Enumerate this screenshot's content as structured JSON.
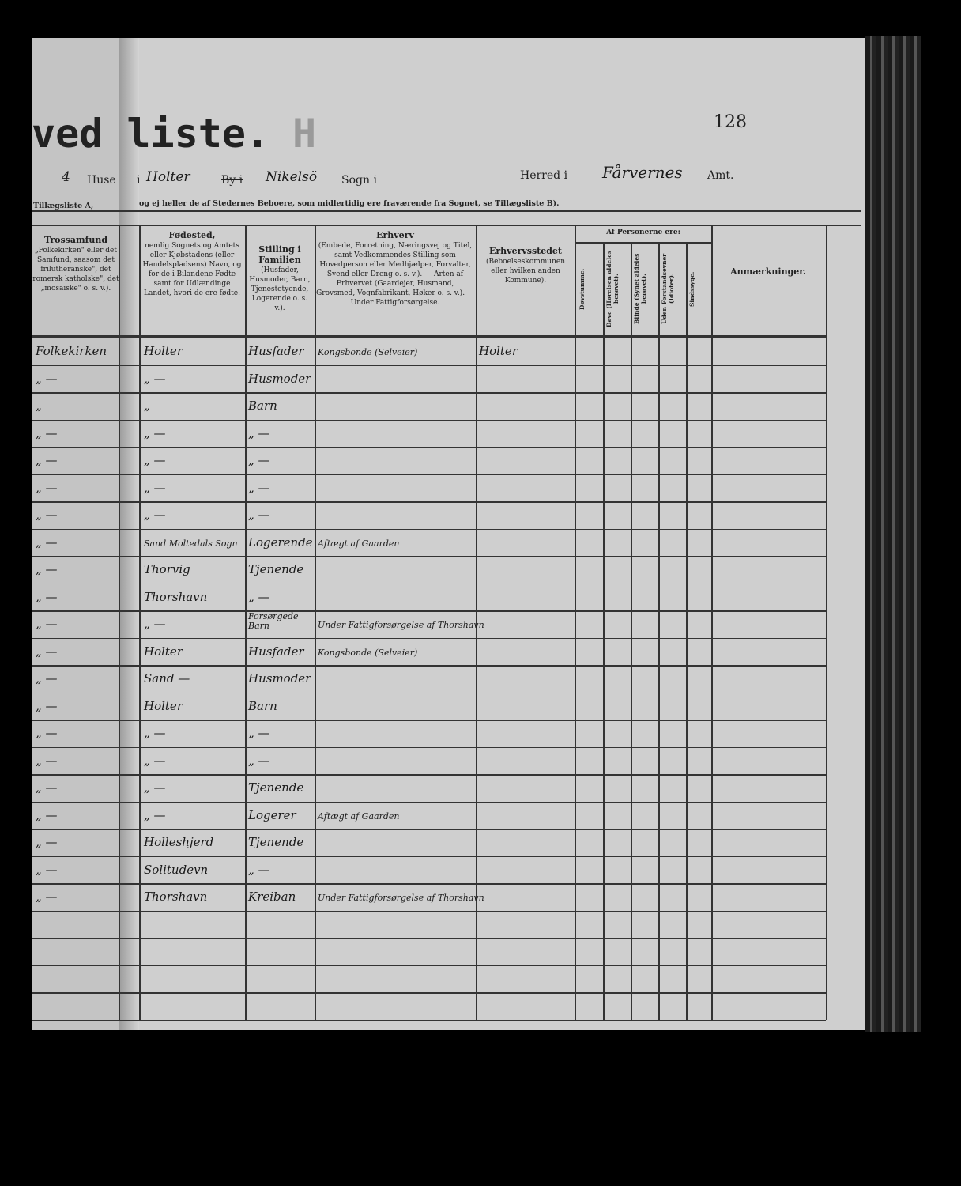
{
  "header": {
    "title": "ved liste.",
    "ghost_letter": "H",
    "page_number": "128",
    "house_count": "4",
    "label_huse": "Huse",
    "label_i": "i",
    "place": "Holter",
    "label_by_struck": "By i",
    "parish": "Nikelsö",
    "label_sogn": "Sogn i",
    "label_herred": "Herred i",
    "county": "Fårvernes",
    "label_amt": "Amt.",
    "left_note": "Tillægsliste A,",
    "note": "og ej heller de af Stedernes Beboere, som midlertidig ere fraværende fra Sognet, se Tillægsliste B)."
  },
  "columns": {
    "tros": {
      "title": "Trossamfund",
      "desc": "„Folkekirken\" eller det Samfund, saasom det frilutheranske\", det romersk katholske\", det „mosaiske\" o. s. v.)."
    },
    "fodested": {
      "title": "Fødested,",
      "desc": "nemlig Sognets og Amtets eller Kjøbstadens (eller Handelspladsens) Navn, og for de i Bilandene Fødte samt for Udlændinge Landet, hvori de ere fødte."
    },
    "stilling": {
      "title": "Stilling i Familien",
      "desc": "(Husfader, Husmoder, Barn, Tjenestetyende, Logerende o. s. v.)."
    },
    "erhverv": {
      "title": "Erhverv",
      "desc": "(Embede, Forretning, Næringsvej og Titel, samt Vedkommendes Stilling som Hovedperson eller Medhjælper, Forvalter, Svend eller Dreng o. s. v.). — Arten af Erhvervet (Gaardejer, Husmand, Grovsmed, Vognfabrikant, Høker o. s. v.). — Under Fattigforsørgelse."
    },
    "erhvervsstedet": {
      "title": "Erhvervsstedet",
      "desc": "(Beboelseskommunen eller hvilken anden Kommune)."
    },
    "af_personerne": "Af Personerne ere:",
    "sub": [
      "Døvstumme.",
      "Døve (Hørelsen aldeles berøvet).",
      "Blinde (Synet aldeles berøvet).",
      "Uden Forstandsevner (Idioter).",
      "Sindssyge."
    ],
    "anmaerkninger": "Anmærkninger."
  },
  "rows": [
    {
      "tros": "Folkekirken",
      "fodested": "Holter",
      "stilling": "Husfader",
      "erhverv": "Kongsbonde (Selveier)",
      "sted": "Holter"
    },
    {
      "tros": "„ —",
      "fodested": "„ —",
      "stilling": "Husmoder",
      "erhverv": "",
      "sted": ""
    },
    {
      "tros": "„",
      "fodested": "„",
      "stilling": "Barn",
      "erhverv": "",
      "sted": ""
    },
    {
      "tros": "„ —",
      "fodested": "„ —",
      "stilling": "„ —",
      "erhverv": "",
      "sted": ""
    },
    {
      "tros": "„ —",
      "fodested": "„ —",
      "stilling": "„ —",
      "erhverv": "",
      "sted": ""
    },
    {
      "tros": "„ —",
      "fodested": "„ —",
      "stilling": "„ —",
      "erhverv": "",
      "sted": ""
    },
    {
      "tros": "„ —",
      "fodested": "„ —",
      "stilling": "„ —",
      "erhverv": "",
      "sted": ""
    },
    {
      "tros": "„ —",
      "fodested": "Sand Moltedals Sogn",
      "stilling": "Logerende",
      "erhverv": "Aftægt af Gaarden",
      "sted": ""
    },
    {
      "tros": "„ —",
      "fodested": "Thorvig",
      "stilling": "Tjenende",
      "erhverv": "",
      "sted": ""
    },
    {
      "tros": "„ —",
      "fodested": "Thorshavn",
      "stilling": "„ —",
      "erhverv": "",
      "sted": ""
    },
    {
      "tros": "„ —",
      "fodested": "„ —",
      "stilling": "Forsørgede Barn",
      "erhverv": "Under Fattigforsørgelse af Thorshavn",
      "sted": ""
    },
    {
      "tros": "„ —",
      "fodested": "Holter",
      "stilling": "Husfader",
      "erhverv": "Kongsbonde (Selveier)",
      "sted": ""
    },
    {
      "tros": "„ —",
      "fodested": "Sand —",
      "stilling": "Husmoder",
      "erhverv": "",
      "sted": ""
    },
    {
      "tros": "„ —",
      "fodested": "Holter",
      "stilling": "Barn",
      "erhverv": "",
      "sted": ""
    },
    {
      "tros": "„ —",
      "fodested": "„ —",
      "stilling": "„ —",
      "erhverv": "",
      "sted": ""
    },
    {
      "tros": "„ —",
      "fodested": "„ —",
      "stilling": "„ —",
      "erhverv": "",
      "sted": ""
    },
    {
      "tros": "„ —",
      "fodested": "„ —",
      "stilling": "Tjenende",
      "erhverv": "",
      "sted": ""
    },
    {
      "tros": "„ —",
      "fodested": "„ —",
      "stilling": "Logerer",
      "erhverv": "Aftægt af Gaarden",
      "sted": ""
    },
    {
      "tros": "„ —",
      "fodested": "Holleshjerd",
      "stilling": "Tjenende",
      "erhverv": "",
      "sted": ""
    },
    {
      "tros": "„ —",
      "fodested": "Solitudevn",
      "stilling": "„ —",
      "erhverv": "",
      "sted": ""
    },
    {
      "tros": "„ —",
      "fodested": "Thorshavn",
      "stilling": "Kreiban",
      "erhverv": "Under Fattigforsørgelse af Thorshavn",
      "sted": ""
    }
  ]
}
